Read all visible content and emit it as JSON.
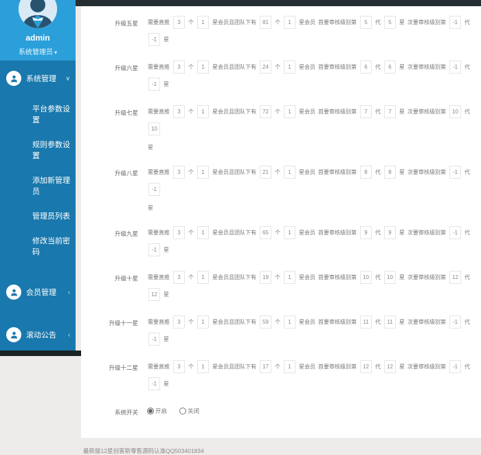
{
  "sidebar": {
    "user": {
      "name": "admin",
      "role": "系统管理员",
      "caret": "▾"
    },
    "menu": [
      {
        "id": "system-management",
        "label": "系统管理",
        "state": "expanded",
        "children": [
          {
            "id": "platform-params",
            "label": "平台参数设置"
          },
          {
            "id": "rule-params",
            "label": "规则参数设置"
          },
          {
            "id": "add-admin",
            "label": "添加新管理员"
          },
          {
            "id": "admin-list",
            "label": "管理员列表"
          },
          {
            "id": "change-password",
            "label": "修改当前密码"
          }
        ]
      },
      {
        "id": "member-management",
        "label": "会员管理",
        "state": "collapsed",
        "children": []
      },
      {
        "id": "scrolling-announcement",
        "label": "滚动公告",
        "state": "collapsed",
        "children": []
      }
    ]
  },
  "form": {
    "text": {
      "need": "需要直推",
      "unit": "个",
      "team": "星会员且团队下有",
      "star_member": "星会员",
      "primary": "首要审核级别第",
      "gen": "代",
      "star": "星",
      "secondary": "次要审核级别第"
    },
    "input_names": [
      "direct-count",
      "direct-star-level",
      "team-count",
      "team-star-level",
      "primary-audit-generation",
      "primary-audit-star",
      "secondary-audit-generation",
      "secondary-audit-star"
    ],
    "rows": [
      {
        "label": "升级五星",
        "values": [
          "3",
          "1",
          "81",
          "1",
          "5",
          "5",
          "-1",
          "-1"
        ],
        "wrap": false
      },
      {
        "label": "升级六星",
        "values": [
          "3",
          "1",
          "24",
          "1",
          "6",
          "6",
          "-1",
          "-1"
        ],
        "wrap": false
      },
      {
        "label": "升级七星",
        "values": [
          "3",
          "1",
          "72",
          "1",
          "7",
          "7",
          "10",
          "10"
        ],
        "wrap": true
      },
      {
        "label": "升级八星",
        "values": [
          "3",
          "1",
          "21",
          "1",
          "8",
          "8",
          "-1",
          "-1"
        ],
        "wrap": true
      },
      {
        "label": "升级九星",
        "values": [
          "3",
          "1",
          "65",
          "1",
          "9",
          "9",
          "-1",
          "-1"
        ],
        "wrap": false
      },
      {
        "label": "升级十星",
        "values": [
          "3",
          "1",
          "19",
          "1",
          "10",
          "10",
          "12",
          "12"
        ],
        "wrap": false
      },
      {
        "label": "升级十一星",
        "values": [
          "3",
          "1",
          "59",
          "1",
          "11",
          "11",
          "-1",
          "-1"
        ],
        "wrap": false
      },
      {
        "label": "升级十二星",
        "values": [
          "3",
          "1",
          "17",
          "1",
          "12",
          "12",
          "-1",
          "-1"
        ],
        "wrap": false
      }
    ],
    "switch": {
      "label": "系统开关",
      "options": [
        {
          "label": "开启",
          "checked": true
        },
        {
          "label": "关闭",
          "checked": false
        }
      ]
    }
  },
  "footer": {
    "text": "最新版12星创客新零售源码认准QQ503401834"
  },
  "colors": {
    "sidebar_header": "#2b9fd9",
    "sidebar_body": "#1978ad",
    "topbar": "#242d32",
    "bottom_strip": "#1a2226",
    "input_border": "#e5e5e5"
  }
}
